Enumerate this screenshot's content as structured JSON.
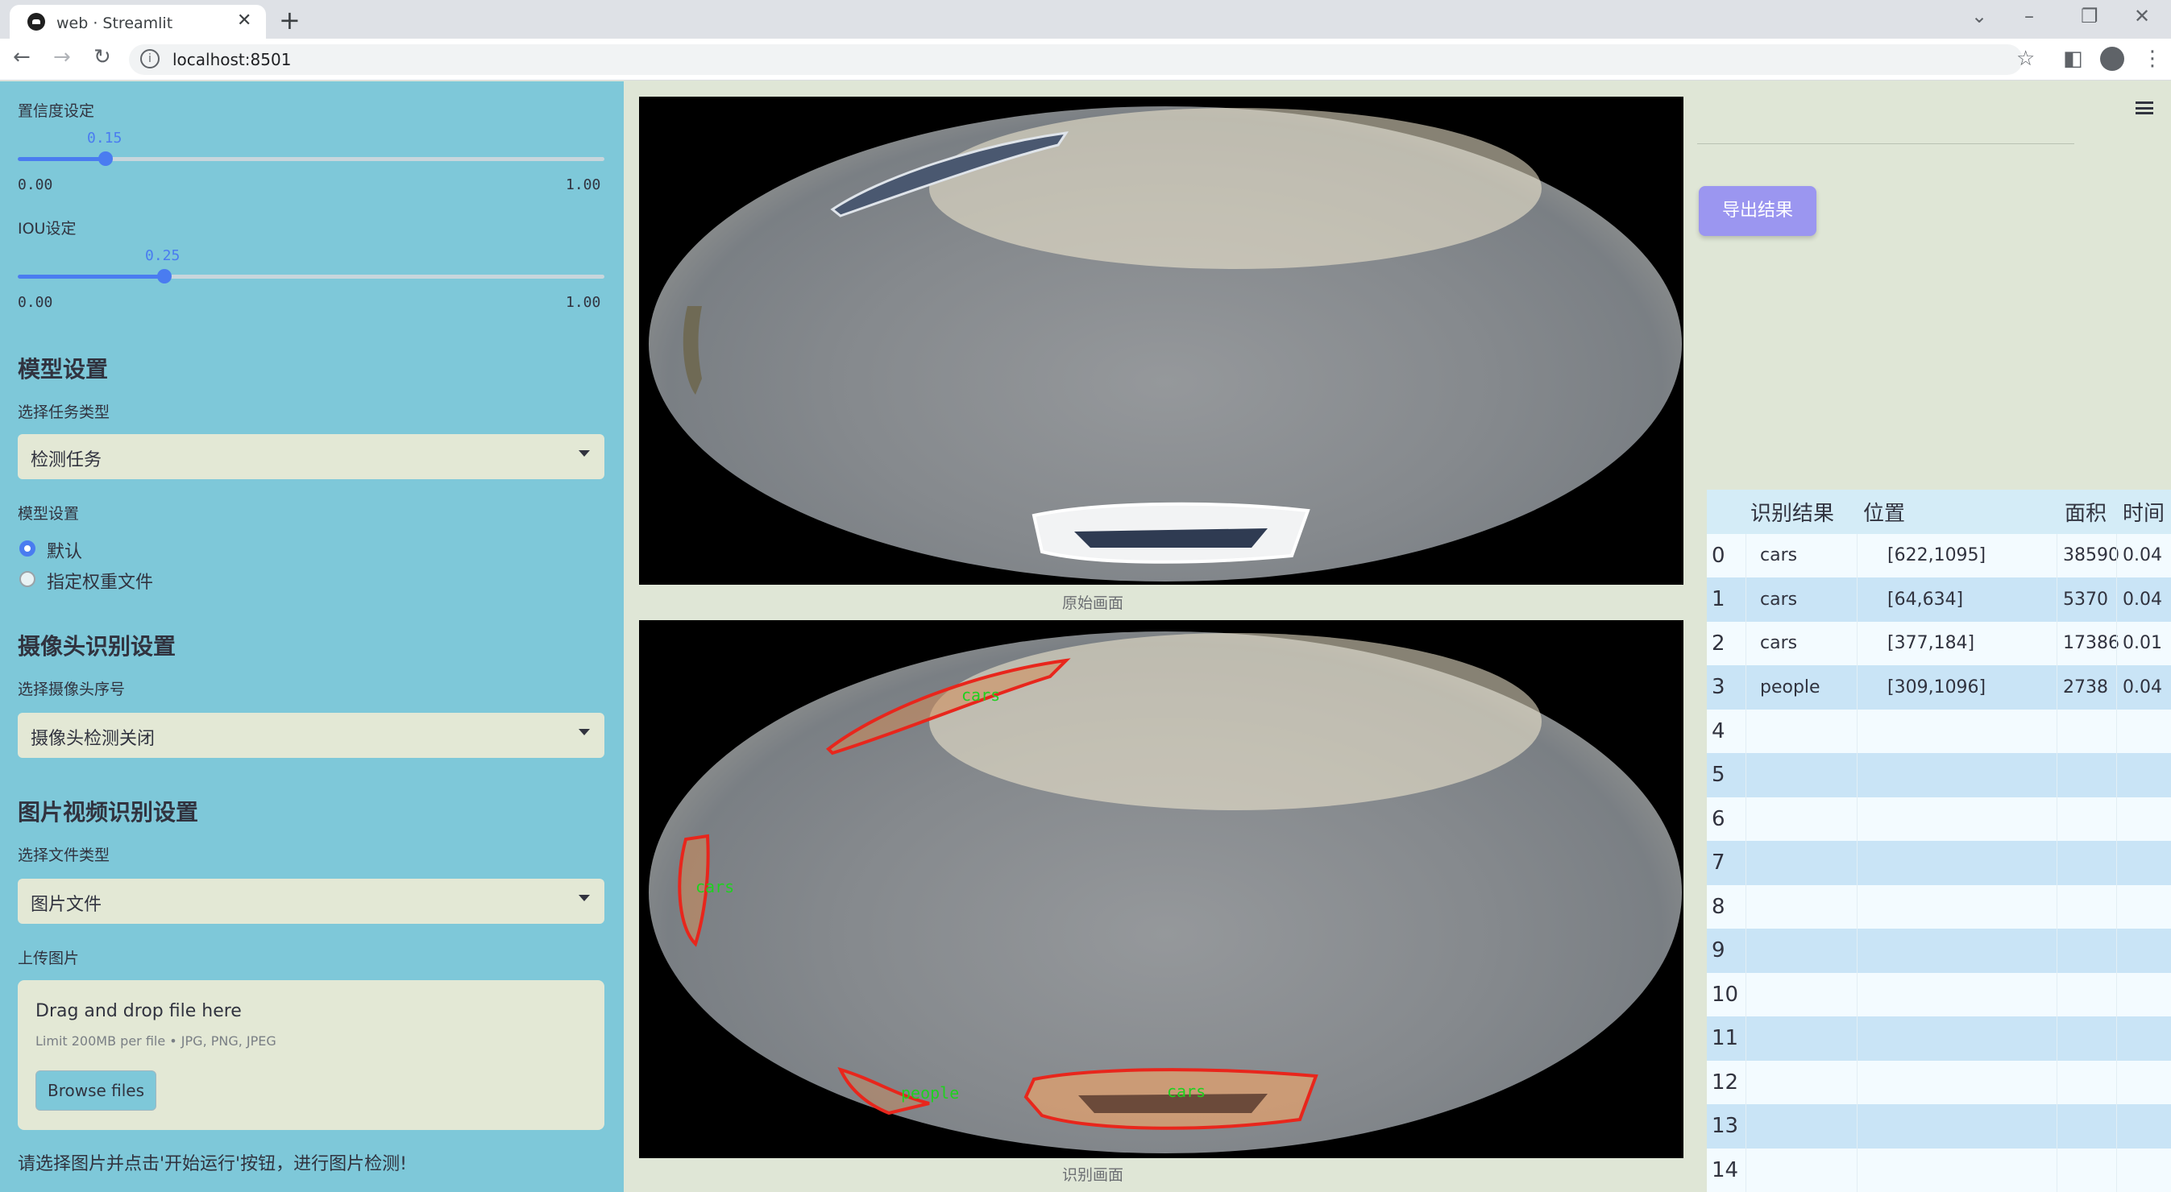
{
  "browser": {
    "tab_title": "web · Streamlit",
    "url": "localhost:8501"
  },
  "sidebar": {
    "confidence": {
      "label": "置信度设定",
      "value": "0.15",
      "value_num": 0.15,
      "min": "0.00",
      "max": "1.00"
    },
    "iou": {
      "label": "IOU设定",
      "value": "0.25",
      "value_num": 0.25,
      "min": "0.00",
      "max": "1.00"
    },
    "model_heading": "模型设置",
    "task_label": "选择任务类型",
    "task_value": "检测任务",
    "model_label": "模型设置",
    "model_options": [
      "默认",
      "指定权重文件"
    ],
    "model_selected": 0,
    "camera_heading": "摄像头识别设置",
    "camera_label": "选择摄像头序号",
    "camera_value": "摄像头检测关闭",
    "media_heading": "图片视频识别设置",
    "filetype_label": "选择文件类型",
    "filetype_value": "图片文件",
    "upload_label": "上传图片",
    "uploader": {
      "title": "Drag and drop file here",
      "limit": "Limit 200MB per file • JPG, PNG, JPEG",
      "button": "Browse files"
    },
    "footer": "请选择图片并点击'开始运行'按钮，进行图片检测!"
  },
  "main": {
    "original_caption": "原始画面",
    "result_caption": "识别画面",
    "detection_labels": [
      "cars",
      "cars",
      "people",
      "cars"
    ]
  },
  "right": {
    "export_button": "导出结果",
    "table": {
      "columns": [
        "识别结果",
        "位置",
        "面积",
        "时间"
      ],
      "rows": [
        {
          "index": "0",
          "result": "cars",
          "position": "[622,1095]",
          "area": "38590",
          "time": "0.04"
        },
        {
          "index": "1",
          "result": "cars",
          "position": "[64,634]",
          "area": "5370",
          "time": "0.04"
        },
        {
          "index": "2",
          "result": "cars",
          "position": "[377,184]",
          "area": "17386",
          "time": "0.01"
        },
        {
          "index": "3",
          "result": "people",
          "position": "[309,1096]",
          "area": "2738",
          "time": "0.04"
        },
        {
          "index": "4"
        },
        {
          "index": "5"
        },
        {
          "index": "6"
        },
        {
          "index": "7"
        },
        {
          "index": "8"
        },
        {
          "index": "9"
        },
        {
          "index": "10"
        },
        {
          "index": "11"
        },
        {
          "index": "12"
        },
        {
          "index": "13"
        },
        {
          "index": "14"
        }
      ]
    }
  },
  "colors": {
    "sidebar_bg": "#7ec8d9",
    "accent": "#4a7cf0",
    "export_button": "#9b96f0",
    "detection_outline": "#e8261c",
    "detection_text": "#1fd11f"
  }
}
